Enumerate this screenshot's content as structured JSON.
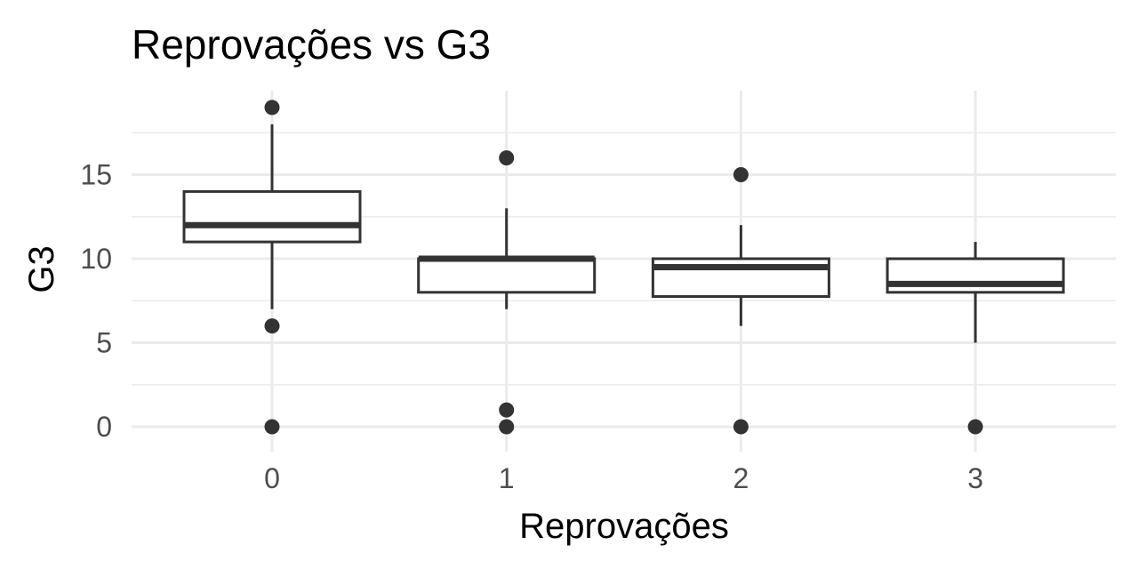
{
  "chart_data": {
    "type": "boxplot",
    "title": "Reprovações vs  G3",
    "xlabel": "Reprovações",
    "ylabel": "G3",
    "categories": [
      "0",
      "1",
      "2",
      "3"
    ],
    "y_ticks": [
      "0",
      "5",
      "10",
      "15"
    ],
    "ylim": [
      -1,
      20
    ],
    "grid": true,
    "boxes": [
      {
        "category": "0",
        "q1": 11,
        "median": 12,
        "q3": 14,
        "whisker_low": 7,
        "whisker_high": 18,
        "outliers": [
          19,
          6,
          0
        ]
      },
      {
        "category": "1",
        "q1": 8,
        "median": 10,
        "q3": 10,
        "whisker_low": 7,
        "whisker_high": 13,
        "outliers": [
          16,
          1,
          0
        ]
      },
      {
        "category": "2",
        "q1": 7.75,
        "median": 9.5,
        "q3": 10,
        "whisker_low": 6,
        "whisker_high": 12,
        "outliers": [
          15,
          0
        ]
      },
      {
        "category": "3",
        "q1": 8,
        "median": 8.5,
        "q3": 10,
        "whisker_low": 5,
        "whisker_high": 11,
        "outliers": [
          0
        ]
      }
    ],
    "colors": {
      "box_line": "#333333",
      "box_fill": "#ffffff",
      "point": "#333333",
      "grid": "#ebebeb"
    }
  }
}
